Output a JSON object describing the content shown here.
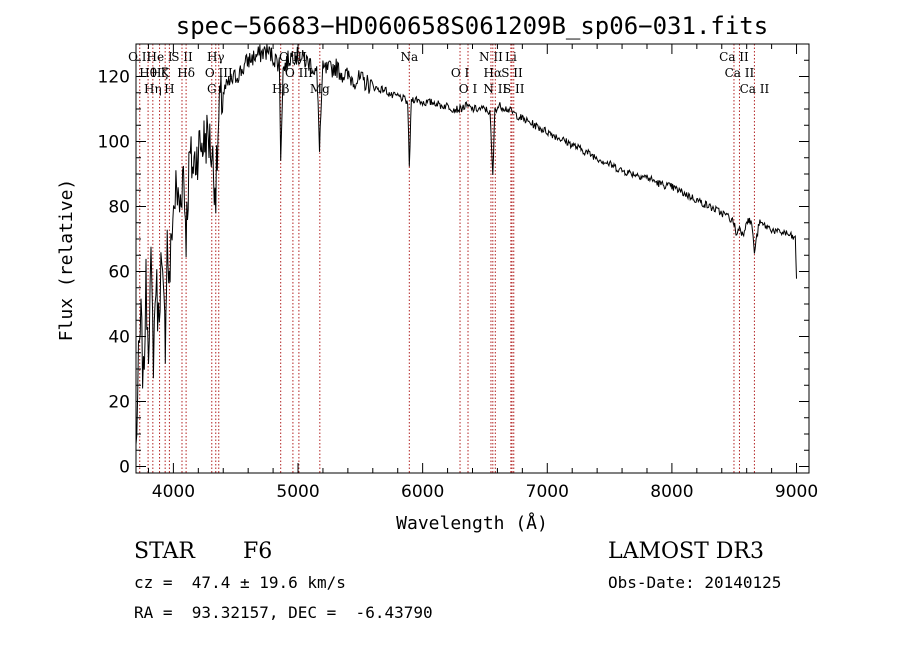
{
  "chart_data": {
    "type": "line",
    "title": "spec−56683−HD060658S061209B_sp06−031.fits",
    "xlabel": "Wavelength (Å)",
    "ylabel": "Flux (relative)",
    "xlim": [
      3700,
      9100
    ],
    "ylim": [
      -2,
      130
    ],
    "xticks": [
      4000,
      5000,
      6000,
      7000,
      8000,
      9000
    ],
    "yticks": [
      0,
      20,
      40,
      60,
      80,
      100,
      120
    ],
    "grid": false,
    "series": [
      {
        "name": "flux",
        "x": [
          3700,
          3720,
          3740,
          3760,
          3780,
          3800,
          3820,
          3840,
          3860,
          3880,
          3900,
          3920,
          3935,
          3950,
          3968,
          3990,
          4020,
          4050,
          4080,
          4102,
          4130,
          4160,
          4200,
          4240,
          4280,
          4310,
          4340,
          4370,
          4400,
          4450,
          4500,
          4550,
          4600,
          4650,
          4700,
          4750,
          4800,
          4850,
          4861,
          4880,
          4920,
          4960,
          5000,
          5050,
          5100,
          5150,
          5172,
          5200,
          5250,
          5300,
          5350,
          5400,
          5450,
          5500,
          5550,
          5600,
          5650,
          5700,
          5750,
          5800,
          5850,
          5880,
          5893,
          5910,
          5950,
          6000,
          6050,
          6100,
          6150,
          6200,
          6250,
          6300,
          6350,
          6400,
          6450,
          6500,
          6540,
          6563,
          6580,
          6620,
          6680,
          6720,
          6800,
          6900,
          7000,
          7100,
          7200,
          7300,
          7400,
          7500,
          7600,
          7700,
          7800,
          7900,
          8000,
          8100,
          8200,
          8300,
          8400,
          8450,
          8498,
          8520,
          8542,
          8570,
          8600,
          8640,
          8662,
          8700,
          8750,
          8800,
          8850,
          8900,
          8950,
          8990,
          9000
        ],
        "values": [
          5,
          30,
          45,
          25,
          55,
          40,
          60,
          35,
          58,
          45,
          62,
          50,
          40,
          70,
          55,
          75,
          85,
          80,
          92,
          72,
          95,
          92,
          98,
          100,
          102,
          96,
          85,
          110,
          115,
          118,
          120,
          122,
          125,
          126,
          127,
          128,
          126,
          124,
          96,
          122,
          125,
          127,
          126,
          125,
          124,
          121,
          99,
          122,
          122,
          123,
          121,
          120,
          119,
          119,
          118,
          117,
          116,
          116,
          114,
          114,
          113,
          112,
          92,
          113,
          113,
          112,
          112,
          112,
          111,
          111,
          110,
          110,
          111,
          110,
          110,
          110,
          109,
          89,
          110,
          111,
          110,
          109,
          107,
          105,
          103,
          101,
          99,
          97,
          95,
          93,
          91,
          90,
          89,
          87,
          86,
          84,
          82,
          80,
          78,
          77,
          75,
          71,
          74,
          71,
          76,
          75,
          66,
          75,
          74,
          73,
          72,
          72,
          71,
          70,
          58
        ]
      }
    ],
    "lines": [
      {
        "w": 3730,
        "labels": [
          "O II"
        ]
      },
      {
        "w": 3797,
        "labels": [
          "Hθ"
        ]
      },
      {
        "w": 3835,
        "labels": [
          "Hη"
        ]
      },
      {
        "w": 3889,
        "labels": [
          "He I",
          "Hζ"
        ]
      },
      {
        "w": 3934,
        "labels": [
          "K"
        ]
      },
      {
        "w": 3968,
        "labels": [
          "H"
        ]
      },
      {
        "w": 4069,
        "labels": [
          "S II"
        ]
      },
      {
        "w": 4102,
        "labels": [
          "Hδ"
        ]
      },
      {
        "w": 4308,
        "labels": [
          "G"
        ]
      },
      {
        "w": 4340,
        "labels": [
          "Hγ"
        ]
      },
      {
        "w": 4364,
        "labels": [
          "O III"
        ]
      },
      {
        "w": 4861,
        "labels": [
          "Hβ"
        ]
      },
      {
        "w": 4959,
        "labels": [
          "O III"
        ]
      },
      {
        "w": 5007,
        "labels": [
          "O III"
        ]
      },
      {
        "w": 5175,
        "labels": [
          "Mg"
        ]
      },
      {
        "w": 5893,
        "labels": [
          "Na"
        ]
      },
      {
        "w": 6300,
        "labels": [
          "O I"
        ]
      },
      {
        "w": 6364,
        "labels": [
          "O I"
        ]
      },
      {
        "w": 6548,
        "labels": [
          "N II"
        ]
      },
      {
        "w": 6563,
        "labels": [
          "Hα"
        ]
      },
      {
        "w": 6583,
        "labels": [
          "N II"
        ]
      },
      {
        "w": 6708,
        "labels": [
          "Li"
        ]
      },
      {
        "w": 6717,
        "labels": [
          "S II"
        ]
      },
      {
        "w": 6731,
        "labels": [
          "S II"
        ]
      },
      {
        "w": 8498,
        "labels": [
          "Ca II"
        ]
      },
      {
        "w": 8542,
        "labels": [
          "Ca II"
        ]
      },
      {
        "w": 8662,
        "labels": [
          "Ca II"
        ]
      }
    ],
    "colors": {
      "spectrum": "#000000",
      "line_marker": "#b22222"
    }
  },
  "info": {
    "object_class": "STAR",
    "subclass": "F6",
    "survey": "LAMOST DR3",
    "redshift": "cz =  47.4 ± 19.6 km/s",
    "obs_date": "Obs-Date: 20140125",
    "coords": "RA =  93.32157, DEC =  -6.43790"
  }
}
